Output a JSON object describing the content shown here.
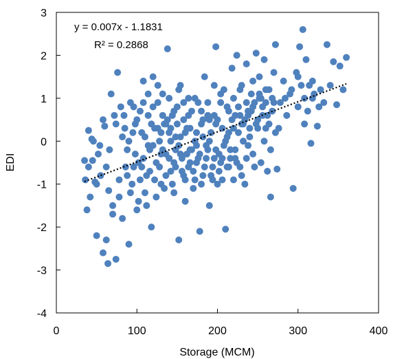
{
  "chart_data": {
    "type": "scatter",
    "title": "",
    "xlabel": "Storage (MCM)",
    "ylabel": "EDI",
    "xlim": [
      0,
      400
    ],
    "ylim": [
      -4,
      3
    ],
    "xticks": [
      "0",
      "100",
      "200",
      "300",
      "400"
    ],
    "yticks": [
      "3",
      "2",
      "1",
      "0",
      "-1",
      "-2",
      "-3",
      "-4"
    ],
    "grid": false,
    "marker_color": "#4f81bd",
    "trendline": {
      "style": "dotted",
      "color": "#000000",
      "slope": 0.007,
      "intercept": -1.1831,
      "x_range": [
        35,
        360
      ],
      "equation": "y = 0.007x - 1.1831",
      "r_squared": "R² = 0.2868"
    },
    "points": [
      [
        35,
        -0.45
      ],
      [
        38,
        -1.6
      ],
      [
        40,
        0.25
      ],
      [
        42,
        -1.3
      ],
      [
        44,
        0.05
      ],
      [
        45,
        -0.45
      ],
      [
        48,
        -0.95
      ],
      [
        50,
        -2.2
      ],
      [
        52,
        -0.3
      ],
      [
        55,
        -0.8
      ],
      [
        58,
        -2.6
      ],
      [
        60,
        0.35
      ],
      [
        62,
        -2.3
      ],
      [
        64,
        -2.85
      ],
      [
        65,
        -1.15
      ],
      [
        68,
        1.1
      ],
      [
        70,
        -1.5
      ],
      [
        72,
        0.6
      ],
      [
        74,
        -2.75
      ],
      [
        76,
        1.6
      ],
      [
        78,
        -0.9
      ],
      [
        80,
        0.8
      ],
      [
        82,
        -1.8
      ],
      [
        85,
        0.3
      ],
      [
        88,
        -0.2
      ],
      [
        90,
        -2.4
      ],
      [
        92,
        0.9
      ],
      [
        95,
        0.2
      ],
      [
        98,
        -0.3
      ],
      [
        100,
        0.5
      ],
      [
        102,
        -1.4
      ],
      [
        104,
        0.7
      ],
      [
        106,
        -0.6
      ],
      [
        108,
        1.4
      ],
      [
        110,
        0.1
      ],
      [
        112,
        -0.8
      ],
      [
        114,
        0.6
      ],
      [
        116,
        -0.2
      ],
      [
        118,
        -2.0
      ],
      [
        120,
        1.5
      ],
      [
        122,
        0.3
      ],
      [
        124,
        -0.5
      ],
      [
        126,
        0.9
      ],
      [
        128,
        0.0
      ],
      [
        130,
        -1.0
      ],
      [
        132,
        1.1
      ],
      [
        134,
        0.4
      ],
      [
        136,
        -0.3
      ],
      [
        138,
        2.15
      ],
      [
        140,
        0.2
      ],
      [
        142,
        -0.7
      ],
      [
        144,
        0.6
      ],
      [
        146,
        -1.2
      ],
      [
        148,
        0.1
      ],
      [
        150,
        0.8
      ],
      [
        152,
        -2.3
      ],
      [
        154,
        1.3
      ],
      [
        156,
        -0.4
      ],
      [
        158,
        0.5
      ],
      [
        160,
        -0.9
      ],
      [
        162,
        0.3
      ],
      [
        164,
        1.0
      ],
      [
        166,
        -0.2
      ],
      [
        168,
        0.7
      ],
      [
        170,
        -1.1
      ],
      [
        172,
        0.0
      ],
      [
        174,
        -0.5
      ],
      [
        176,
        0.9
      ],
      [
        178,
        -2.1
      ],
      [
        180,
        0.4
      ],
      [
        182,
        -0.8
      ],
      [
        184,
        1.5
      ],
      [
        186,
        -0.1
      ],
      [
        188,
        0.6
      ],
      [
        190,
        -1.5
      ],
      [
        192,
        0.2
      ],
      [
        194,
        -0.6
      ],
      [
        196,
        1.3
      ],
      [
        198,
        2.2
      ],
      [
        200,
        0.5
      ],
      [
        202,
        -0.3
      ],
      [
        204,
        0.9
      ],
      [
        206,
        -0.9
      ],
      [
        208,
        1.2
      ],
      [
        210,
        -2.05
      ],
      [
        212,
        0.1
      ],
      [
        214,
        0.7
      ],
      [
        216,
        -0.4
      ],
      [
        218,
        1.7
      ],
      [
        220,
        0.3
      ],
      [
        222,
        -0.2
      ],
      [
        224,
        2.0
      ],
      [
        226,
        0.8
      ],
      [
        228,
        -0.6
      ],
      [
        230,
        1.3
      ],
      [
        232,
        0.4
      ],
      [
        234,
        -1.0
      ],
      [
        236,
        1.8
      ],
      [
        238,
        0.6
      ],
      [
        240,
        0.1
      ],
      [
        242,
        1.1
      ],
      [
        244,
        -0.3
      ],
      [
        246,
        0.9
      ],
      [
        248,
        2.05
      ],
      [
        250,
        0.5
      ],
      [
        252,
        1.5
      ],
      [
        254,
        -0.5
      ],
      [
        256,
        0.8
      ],
      [
        258,
        1.9
      ],
      [
        260,
        0.3
      ],
      [
        262,
        -0.7
      ],
      [
        264,
        1.2
      ],
      [
        266,
        -1.3
      ],
      [
        268,
        0.7
      ],
      [
        270,
        1.6
      ],
      [
        272,
        2.25
      ],
      [
        274,
        -0.65
      ],
      [
        278,
        0.9
      ],
      [
        282,
        1.4
      ],
      [
        286,
        0.6
      ],
      [
        290,
        1.1
      ],
      [
        294,
        -1.1
      ],
      [
        298,
        1.6
      ],
      [
        300,
        0.8
      ],
      [
        302,
        2.2
      ],
      [
        304,
        1.3
      ],
      [
        306,
        2.6
      ],
      [
        308,
        0.4
      ],
      [
        310,
        1.9
      ],
      [
        312,
        0.7
      ],
      [
        314,
        1.3
      ],
      [
        316,
        -0.05
      ],
      [
        318,
        1.0
      ],
      [
        320,
        1.1
      ],
      [
        324,
        0.35
      ],
      [
        328,
        1.2
      ],
      [
        332,
        0.9
      ],
      [
        336,
        2.25
      ],
      [
        340,
        1.3
      ],
      [
        344,
        1.85
      ],
      [
        348,
        0.85
      ],
      [
        352,
        1.75
      ],
      [
        356,
        1.2
      ],
      [
        360,
        1.95
      ],
      [
        36,
        -0.9
      ],
      [
        40,
        -0.6
      ],
      [
        46,
        0.0
      ],
      [
        50,
        -1.0
      ],
      [
        54,
        -0.1
      ],
      [
        58,
        0.5
      ],
      [
        62,
        -0.6
      ],
      [
        66,
        -0.2
      ],
      [
        70,
        -1.7
      ],
      [
        74,
        0.4
      ],
      [
        78,
        -1.3
      ],
      [
        82,
        0.1
      ],
      [
        86,
        -0.6
      ],
      [
        90,
        0.0
      ],
      [
        94,
        -1.0
      ],
      [
        98,
        0.4
      ],
      [
        102,
        -0.5
      ],
      [
        106,
        0.2
      ],
      [
        110,
        -1.2
      ],
      [
        114,
        -0.1
      ],
      [
        118,
        0.4
      ],
      [
        122,
        -0.9
      ],
      [
        126,
        0.3
      ],
      [
        130,
        -0.3
      ],
      [
        134,
        -1.1
      ],
      [
        138,
        0.5
      ],
      [
        142,
        0.0
      ],
      [
        146,
        -0.5
      ],
      [
        150,
        0.4
      ],
      [
        154,
        -0.3
      ],
      [
        158,
        -0.8
      ],
      [
        162,
        -0.3
      ],
      [
        166,
        0.3
      ],
      [
        170,
        -0.7
      ],
      [
        174,
        0.2
      ],
      [
        178,
        -0.3
      ],
      [
        182,
        0.5
      ],
      [
        186,
        -0.4
      ],
      [
        190,
        0.0
      ],
      [
        194,
        -0.9
      ],
      [
        198,
        0.4
      ],
      [
        202,
        -0.7
      ],
      [
        206,
        0.3
      ],
      [
        210,
        0.0
      ],
      [
        214,
        -0.6
      ],
      [
        218,
        0.5
      ],
      [
        222,
        -0.4
      ],
      [
        226,
        0.2
      ],
      [
        230,
        -0.8
      ],
      [
        234,
        0.5
      ],
      [
        238,
        -0.1
      ],
      [
        242,
        0.7
      ],
      [
        246,
        -0.6
      ],
      [
        250,
        0.3
      ],
      [
        254,
        1.0
      ],
      [
        258,
        0.0
      ],
      [
        262,
        0.6
      ],
      [
        266,
        -0.2
      ],
      [
        270,
        0.9
      ],
      [
        276,
        0.3
      ],
      [
        284,
        1.0
      ],
      [
        292,
        1.2
      ],
      [
        300,
        1.5
      ],
      [
        308,
        1.0
      ],
      [
        318,
        1.4
      ],
      [
        326,
        0.8
      ],
      [
        88,
        -0.8
      ],
      [
        92,
        -1.2
      ],
      [
        96,
        -0.6
      ],
      [
        100,
        -1.6
      ],
      [
        104,
        -0.9
      ],
      [
        108,
        -0.4
      ],
      [
        112,
        -1.5
      ],
      [
        116,
        -0.7
      ],
      [
        120,
        -0.1
      ],
      [
        124,
        -1.3
      ],
      [
        128,
        -0.6
      ],
      [
        132,
        -0.2
      ],
      [
        136,
        -0.8
      ],
      [
        140,
        -0.4
      ],
      [
        144,
        -1.0
      ],
      [
        148,
        -0.6
      ],
      [
        152,
        -0.1
      ],
      [
        156,
        -0.7
      ],
      [
        160,
        -1.4
      ],
      [
        164,
        -0.6
      ],
      [
        168,
        -0.2
      ],
      [
        172,
        -0.9
      ],
      [
        176,
        -0.4
      ],
      [
        180,
        -1.0
      ],
      [
        184,
        -0.6
      ],
      [
        188,
        -0.2
      ],
      [
        192,
        -0.8
      ],
      [
        196,
        -0.4
      ],
      [
        200,
        -1.0
      ],
      [
        204,
        -0.5
      ],
      [
        208,
        -0.1
      ],
      [
        212,
        -0.6
      ],
      [
        216,
        -0.2
      ],
      [
        220,
        -0.9
      ],
      [
        224,
        -0.5
      ],
      [
        228,
        0.6
      ],
      [
        232,
        0.0
      ],
      [
        236,
        -0.4
      ],
      [
        240,
        0.3
      ],
      [
        244,
        0.8
      ],
      [
        248,
        0.4
      ],
      [
        252,
        1.0
      ],
      [
        256,
        0.6
      ],
      [
        260,
        1.2
      ],
      [
        264,
        0.4
      ],
      [
        268,
        1.0
      ],
      [
        272,
        0.2
      ],
      [
        120,
        0.8
      ],
      [
        126,
        1.3
      ],
      [
        132,
        0.6
      ],
      [
        140,
        1.0
      ],
      [
        146,
        0.7
      ],
      [
        152,
        1.2
      ],
      [
        158,
        0.9
      ],
      [
        164,
        0.6
      ],
      [
        172,
        1.0
      ],
      [
        180,
        0.7
      ],
      [
        188,
        0.9
      ],
      [
        196,
        0.6
      ],
      [
        204,
        1.1
      ],
      [
        212,
        0.8
      ],
      [
        220,
        1.0
      ],
      [
        228,
        1.2
      ],
      [
        236,
        0.9
      ],
      [
        244,
        1.4
      ],
      [
        252,
        1.1
      ],
      [
        260,
        0.9
      ],
      [
        84,
        0.6
      ],
      [
        96,
        0.8
      ],
      [
        108,
        0.9
      ],
      [
        114,
        1.1
      ],
      [
        130,
        0.2
      ],
      [
        136,
        0.4
      ],
      [
        142,
        0.3
      ],
      [
        148,
        -0.2
      ],
      [
        154,
        0.1
      ],
      [
        160,
        0.2
      ],
      [
        166,
        -0.5
      ],
      [
        174,
        -0.1
      ],
      [
        182,
        0.1
      ],
      [
        190,
        0.5
      ],
      [
        198,
        -0.2
      ],
      [
        206,
        -0.4
      ],
      [
        214,
        0.2
      ],
      [
        222,
        0.6
      ],
      [
        230,
        0.4
      ],
      [
        238,
        0.7
      ]
    ]
  }
}
